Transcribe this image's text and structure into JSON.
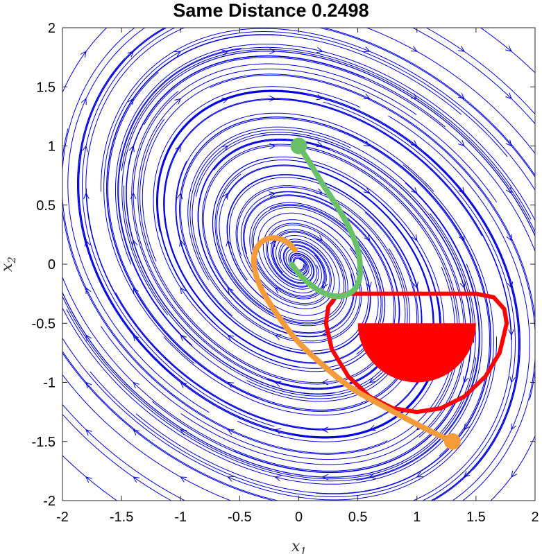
{
  "chart_data": {
    "type": "streamplot",
    "title": "Same Distance 0.2498",
    "xlabel": "x",
    "xlabel_sub": "1",
    "ylabel": "x",
    "ylabel_sub": "2",
    "xlim": [
      -2,
      2
    ],
    "ylim": [
      -2,
      2
    ],
    "xticks": [
      -2,
      -1.5,
      -1,
      -0.5,
      0,
      0.5,
      1,
      1.5,
      2
    ],
    "yticks": [
      -2,
      -1.5,
      -1,
      -0.5,
      0,
      0.5,
      1,
      1.5,
      2
    ],
    "xtick_labels": [
      "-2",
      "-1.5",
      "-1",
      "-0.5",
      "0",
      "0.5",
      "1",
      "1.5",
      "2"
    ],
    "ytick_labels": [
      "-2",
      "-1.5",
      "-1",
      "-0.5",
      "0",
      "0.5",
      "1",
      "1.5",
      "2"
    ],
    "grid": false,
    "colors": {
      "streamlines": "#0000dd",
      "green_trajectory": "#6abf69",
      "orange_trajectory": "#f59b3a",
      "unsafe_region": "#ff0000"
    },
    "trajectories": [
      {
        "color_key": "green_trajectory",
        "start_marker": true,
        "points": [
          [
            0,
            1
          ],
          [
            0.08,
            0.88
          ],
          [
            0.2,
            0.68
          ],
          [
            0.33,
            0.48
          ],
          [
            0.43,
            0.3
          ],
          [
            0.5,
            0.12
          ],
          [
            0.52,
            -0.05
          ],
          [
            0.5,
            -0.17
          ],
          [
            0.44,
            -0.24
          ],
          [
            0.35,
            -0.27
          ],
          [
            0.25,
            -0.26
          ],
          [
            0.15,
            -0.21
          ],
          [
            0.06,
            -0.14
          ],
          [
            0,
            -0.08
          ],
          [
            -0.06,
            0
          ]
        ]
      },
      {
        "color_key": "orange_trajectory",
        "start_marker": true,
        "points": [
          [
            1.3,
            -1.5
          ],
          [
            1.05,
            -1.38
          ],
          [
            0.75,
            -1.22
          ],
          [
            0.45,
            -1.05
          ],
          [
            0.2,
            -0.85
          ],
          [
            -0.02,
            -0.64
          ],
          [
            -0.2,
            -0.4
          ],
          [
            -0.33,
            -0.18
          ],
          [
            -0.38,
            0.02
          ],
          [
            -0.34,
            0.16
          ],
          [
            -0.24,
            0.22
          ],
          [
            -0.12,
            0.2
          ],
          [
            -0.03,
            0.12
          ]
        ]
      }
    ],
    "unsafe_set": {
      "semi_disc": {
        "center": [
          1,
          -0.5
        ],
        "radius": 0.5
      },
      "boundary": [
        [
          0.4,
          -0.25
        ],
        [
          1.5,
          -0.25
        ],
        [
          1.65,
          -0.28
        ],
        [
          1.74,
          -0.38
        ],
        [
          1.76,
          -0.5
        ],
        [
          1.7,
          -0.75
        ],
        [
          1.58,
          -0.95
        ],
        [
          1.4,
          -1.12
        ],
        [
          1.2,
          -1.22
        ],
        [
          1,
          -1.25
        ],
        [
          0.8,
          -1.22
        ],
        [
          0.6,
          -1.12
        ],
        [
          0.42,
          -0.95
        ],
        [
          0.28,
          -0.72
        ],
        [
          0.23,
          -0.5
        ],
        [
          0.25,
          -0.36
        ],
        [
          0.31,
          -0.28
        ]
      ]
    }
  }
}
